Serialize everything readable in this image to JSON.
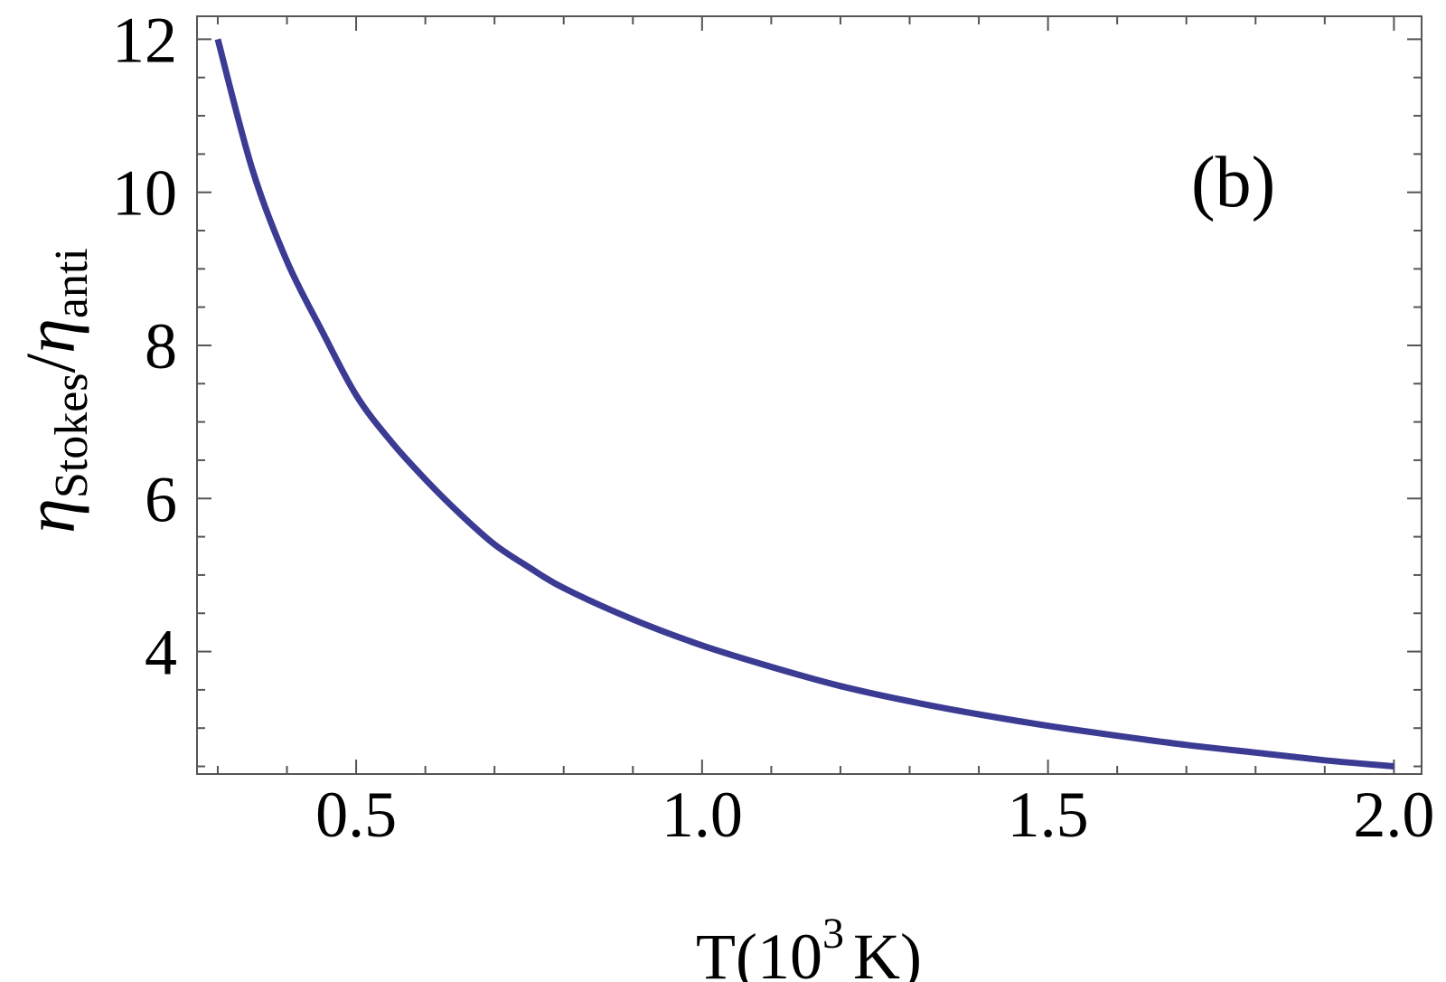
{
  "chart_data": {
    "type": "line",
    "panel_label": "(b)",
    "xlabel": {
      "prefix": "T(",
      "base": "10",
      "exponent": "3",
      "suffix": "K)"
    },
    "ylabel": {
      "symbol": "η",
      "numerator_sub": "Stokes",
      "separator": "/",
      "denominator_sub": "anti"
    },
    "xlim": [
      0.27,
      2.04
    ],
    "ylim": [
      2.4,
      12.3
    ],
    "x_ticks": [
      "0.5",
      "1.0",
      "1.5",
      "2.0"
    ],
    "y_ticks": [
      "4",
      "6",
      "8",
      "10",
      "12"
    ],
    "grid": false,
    "color": "#3b3b94",
    "series": [
      {
        "x": [
          0.3,
          0.35,
          0.4,
          0.45,
          0.5,
          0.55,
          0.6,
          0.65,
          0.7,
          0.75,
          0.8,
          0.9,
          1.0,
          1.1,
          1.2,
          1.3,
          1.4,
          1.5,
          1.6,
          1.7,
          1.8,
          1.9,
          2.0
        ],
        "y": [
          12.0,
          10.3,
          9.1,
          8.2,
          7.35,
          6.75,
          6.25,
          5.8,
          5.4,
          5.1,
          4.83,
          4.42,
          4.08,
          3.8,
          3.55,
          3.35,
          3.18,
          3.03,
          2.9,
          2.78,
          2.68,
          2.58,
          2.5
        ]
      }
    ]
  }
}
